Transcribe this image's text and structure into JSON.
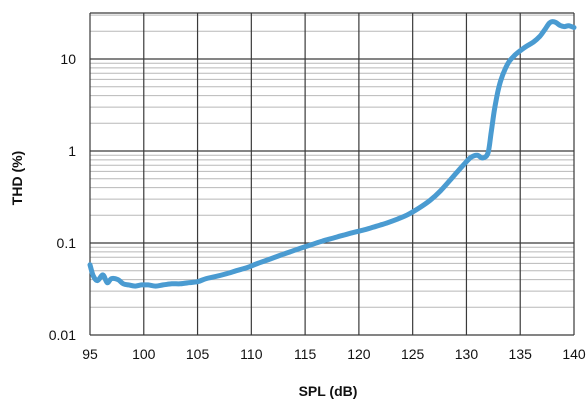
{
  "chart_data": {
    "type": "line",
    "title": "",
    "xlabel": "SPL (dB)",
    "ylabel": "THD (%)",
    "xlim": [
      95,
      140
    ],
    "ylim": [
      0.01,
      30
    ],
    "y_scale": "log",
    "grid": true,
    "x_ticks": [
      "95",
      "100",
      "105",
      "110",
      "115",
      "120",
      "125",
      "130",
      "135",
      "140"
    ],
    "y_ticks": [
      "0.01",
      "0.1",
      "1",
      "10"
    ],
    "colors": {
      "series": "#4a9bd1",
      "grid_major": "#3a3a3a",
      "grid_minor": "#b8b8b8"
    },
    "series": [
      {
        "name": "",
        "x": [
          95.0,
          95.3,
          95.7,
          96.2,
          96.6,
          97.0,
          97.6,
          98.1,
          98.6,
          99.2,
          99.8,
          100.4,
          101.1,
          101.8,
          102.6,
          103.4,
          104.2,
          105.0,
          105.8,
          106.6,
          107.6,
          108.6,
          109.6,
          110.6,
          111.6,
          112.6,
          113.6,
          114.6,
          115.6,
          116.6,
          117.6,
          118.6,
          119.6,
          120.6,
          121.6,
          122.6,
          123.6,
          124.6,
          125.6,
          126.6,
          127.6,
          128.6,
          129.6,
          130.4,
          131.0,
          131.5,
          132.0,
          132.3,
          132.6,
          132.9,
          133.2,
          133.6,
          134.0,
          134.5,
          135.0,
          135.6,
          136.2,
          136.8,
          137.3,
          137.7,
          138.0,
          138.3,
          138.7,
          139.1,
          139.5,
          140.0
        ],
        "y": [
          0.058,
          0.044,
          0.039,
          0.045,
          0.037,
          0.041,
          0.04,
          0.036,
          0.035,
          0.034,
          0.035,
          0.035,
          0.034,
          0.035,
          0.036,
          0.036,
          0.037,
          0.038,
          0.041,
          0.043,
          0.046,
          0.05,
          0.054,
          0.06,
          0.066,
          0.073,
          0.08,
          0.088,
          0.096,
          0.105,
          0.113,
          0.122,
          0.131,
          0.14,
          0.152,
          0.165,
          0.182,
          0.205,
          0.24,
          0.29,
          0.37,
          0.5,
          0.68,
          0.85,
          0.9,
          0.84,
          0.95,
          1.6,
          2.8,
          4.3,
          5.9,
          7.8,
          9.5,
          11.0,
          12.3,
          13.8,
          15.2,
          17.5,
          21.0,
          24.5,
          25.5,
          25.0,
          23.2,
          22.5,
          23.0,
          22.0
        ]
      }
    ]
  }
}
